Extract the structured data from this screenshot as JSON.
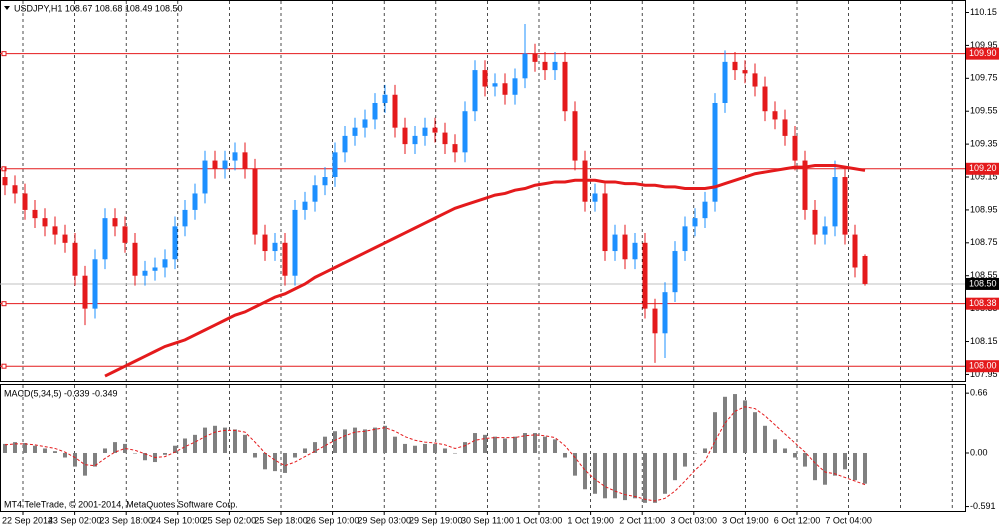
{
  "chart_data": {
    "type": "candlestick",
    "title": "USDJPY,H1  108.67 108.68 108.49 108.50",
    "up_color": "#1e90ff",
    "down_color": "#e41a1c",
    "grid": true,
    "ylim": [
      107.91,
      110.22
    ],
    "yticks": [
      110.15,
      109.95,
      109.75,
      109.55,
      109.35,
      109.15,
      108.95,
      108.75,
      108.55,
      108.35,
      108.15,
      107.95
    ],
    "xlabels": [
      "22 Sep 2014",
      "23 Sep 02:00",
      "23 Sep 18:00",
      "24 Sep 10:00",
      "25 Sep 02:00",
      "25 Sep 18:00",
      "26 Sep 10:00",
      "29 Sep 03:00",
      "29 Sep 19:00",
      "30 Sep 11:00",
      "1 Oct 03:00",
      "1 Oct 19:00",
      "2 Oct 11:00",
      "3 Oct 03:00",
      "3 Oct 19:00",
      "6 Oct 12:00",
      "7 Oct 04:00"
    ],
    "open": [
      109.15,
      109.1,
      109.05,
      108.95,
      108.9,
      108.85,
      108.8,
      108.75,
      108.55,
      108.35,
      108.65,
      108.9,
      108.85,
      108.75,
      108.55,
      108.58,
      108.6,
      108.65,
      108.85,
      108.95,
      109.05,
      109.25,
      109.2,
      109.25,
      109.3,
      109.2,
      108.8,
      108.7,
      108.75,
      108.55,
      108.95,
      109.0,
      109.1,
      109.15,
      109.3,
      109.4,
      109.45,
      109.5,
      109.6,
      109.65,
      109.45,
      109.35,
      109.4,
      109.45,
      109.42,
      109.35,
      109.3,
      109.55,
      109.8,
      109.7,
      109.72,
      109.65,
      109.75,
      109.9,
      109.85,
      109.8,
      109.85,
      109.55,
      109.25,
      109.0,
      109.05,
      108.7,
      108.8,
      108.65,
      108.75,
      108.35,
      108.2,
      108.45,
      108.7,
      108.85,
      108.9,
      109.0,
      109.6,
      109.85,
      109.8,
      109.78,
      109.7,
      109.55,
      109.5,
      109.4,
      109.25,
      108.95,
      108.8,
      108.85,
      109.15,
      108.8,
      108.67
    ],
    "high": [
      109.21,
      109.16,
      109.11,
      109.01,
      108.96,
      108.91,
      108.86,
      108.81,
      108.61,
      108.71,
      108.96,
      108.96,
      108.91,
      108.81,
      108.64,
      108.66,
      108.71,
      108.91,
      109.01,
      109.11,
      109.31,
      109.31,
      109.31,
      109.36,
      109.36,
      109.26,
      108.86,
      108.81,
      108.81,
      109.01,
      109.06,
      109.16,
      109.21,
      109.36,
      109.46,
      109.51,
      109.56,
      109.66,
      109.71,
      109.71,
      109.51,
      109.46,
      109.51,
      109.51,
      109.48,
      109.41,
      109.61,
      109.86,
      109.86,
      109.78,
      109.78,
      109.81,
      110.08,
      109.96,
      109.91,
      109.91,
      109.91,
      109.61,
      109.31,
      109.11,
      109.11,
      108.86,
      108.86,
      108.81,
      108.81,
      108.41,
      108.51,
      108.76,
      108.91,
      108.96,
      109.06,
      109.66,
      109.92,
      109.91,
      109.86,
      109.84,
      109.76,
      109.61,
      109.56,
      109.46,
      109.31,
      109.01,
      108.91,
      109.25,
      109.21,
      108.86,
      108.68
    ],
    "low": [
      109.04,
      108.99,
      108.89,
      108.84,
      108.79,
      108.74,
      108.69,
      108.49,
      108.25,
      108.29,
      108.59,
      108.79,
      108.69,
      108.49,
      108.49,
      108.52,
      108.54,
      108.59,
      108.79,
      108.89,
      108.99,
      109.14,
      109.14,
      109.19,
      109.14,
      108.74,
      108.64,
      108.64,
      108.49,
      108.49,
      108.89,
      108.94,
      109.04,
      109.09,
      109.24,
      109.34,
      109.39,
      109.44,
      109.54,
      109.39,
      109.29,
      109.29,
      109.34,
      109.36,
      109.29,
      109.24,
      109.24,
      109.49,
      109.64,
      109.64,
      109.59,
      109.59,
      109.69,
      109.79,
      109.74,
      109.74,
      109.49,
      109.19,
      108.94,
      108.94,
      108.64,
      108.64,
      108.59,
      108.59,
      108.29,
      108.02,
      108.05,
      108.39,
      108.64,
      108.79,
      108.84,
      108.94,
      109.54,
      109.74,
      109.72,
      109.64,
      109.49,
      109.44,
      109.34,
      109.19,
      108.89,
      108.74,
      108.74,
      108.79,
      108.74,
      108.54,
      108.49
    ],
    "close": [
      109.1,
      109.05,
      108.95,
      108.9,
      108.85,
      108.8,
      108.75,
      108.55,
      108.35,
      108.65,
      108.9,
      108.85,
      108.75,
      108.55,
      108.58,
      108.6,
      108.65,
      108.85,
      108.95,
      109.05,
      109.25,
      109.2,
      109.25,
      109.3,
      109.2,
      108.8,
      108.7,
      108.75,
      108.55,
      108.95,
      109.0,
      109.1,
      109.15,
      109.3,
      109.4,
      109.45,
      109.5,
      109.6,
      109.65,
      109.45,
      109.35,
      109.4,
      109.45,
      109.42,
      109.35,
      109.3,
      109.55,
      109.8,
      109.7,
      109.72,
      109.65,
      109.75,
      109.9,
      109.85,
      109.8,
      109.85,
      109.55,
      109.25,
      109.0,
      109.05,
      108.7,
      108.8,
      108.65,
      108.75,
      108.35,
      108.2,
      108.45,
      108.7,
      108.85,
      108.9,
      109.0,
      109.6,
      109.85,
      109.8,
      109.78,
      109.7,
      109.55,
      109.5,
      109.4,
      109.25,
      108.95,
      108.8,
      108.85,
      109.15,
      108.8,
      108.6,
      108.5
    ],
    "moving_average": {
      "color": "#e41a1c",
      "values": [
        null,
        null,
        null,
        null,
        null,
        null,
        null,
        null,
        null,
        null,
        107.94,
        107.97,
        108.0,
        108.03,
        108.06,
        108.09,
        108.12,
        108.14,
        108.16,
        108.19,
        108.22,
        108.25,
        108.28,
        108.31,
        108.33,
        108.36,
        108.39,
        108.42,
        108.44,
        108.47,
        108.5,
        108.54,
        108.57,
        108.6,
        108.63,
        108.66,
        108.69,
        108.72,
        108.75,
        108.78,
        108.81,
        108.84,
        108.87,
        108.9,
        108.93,
        108.96,
        108.98,
        109.0,
        109.02,
        109.04,
        109.05,
        109.07,
        109.08,
        109.1,
        109.11,
        109.12,
        109.12,
        109.13,
        109.13,
        109.13,
        109.12,
        109.12,
        109.11,
        109.11,
        109.1,
        109.1,
        109.09,
        109.09,
        109.08,
        109.08,
        109.08,
        109.09,
        109.11,
        109.13,
        109.15,
        109.17,
        109.18,
        109.19,
        109.2,
        109.21,
        109.21,
        109.22,
        109.22,
        109.22,
        109.21,
        109.2,
        109.19
      ]
    },
    "level_color": "#e41a1c",
    "levels": [
      {
        "value": 109.9,
        "label": "109.90"
      },
      {
        "value": 109.2,
        "label": "109.20"
      },
      108.38,
      {
        "value": 108,
        "label": "108.00"
      }
    ],
    "current_price": {
      "value": 108.5,
      "label": "108.50"
    },
    "macd": {
      "title": "MACD(5,34,5) -0.339 -0.349",
      "hist_color": "#808080",
      "signal_color": "#e41a1c",
      "ylim": [
        -0.64,
        0.75
      ],
      "yticks": [
        0.66,
        {
          "value": 0,
          "label": "0.00"
        },
        -0.591
      ],
      "histogram": [
        0.1,
        0.12,
        0.11,
        0.08,
        0.05,
        0.02,
        -0.05,
        -0.15,
        -0.25,
        -0.15,
        0.05,
        0.12,
        0.1,
        0,
        -0.08,
        -0.1,
        -0.02,
        0.08,
        0.16,
        0.2,
        0.28,
        0.3,
        0.28,
        0.26,
        0.2,
        -0.05,
        -0.18,
        -0.2,
        -0.22,
        -0.05,
        0.05,
        0.12,
        0.18,
        0.24,
        0.26,
        0.28,
        0.26,
        0.28,
        0.3,
        0.18,
        0.1,
        0.08,
        0.1,
        0.1,
        0.05,
        0,
        0.12,
        0.22,
        0.2,
        0.18,
        0.16,
        0.18,
        0.22,
        0.22,
        0.18,
        0.15,
        -0.05,
        -0.25,
        -0.4,
        -0.45,
        -0.5,
        -0.5,
        -0.52,
        -0.5,
        -0.55,
        -0.55,
        -0.45,
        -0.3,
        -0.15,
        0,
        0.05,
        0.45,
        0.62,
        0.65,
        0.58,
        0.45,
        0.3,
        0.15,
        0.05,
        -0.05,
        -0.15,
        -0.3,
        -0.35,
        -0.25,
        -0.18,
        -0.3,
        -0.339
      ],
      "signal": [
        0.09,
        0.1,
        0.1,
        0.09,
        0.07,
        0.05,
        0.01,
        -0.05,
        -0.13,
        -0.14,
        -0.06,
        0.01,
        0.05,
        0.03,
        -0.01,
        -0.05,
        -0.04,
        0.01,
        0.07,
        0.12,
        0.18,
        0.23,
        0.25,
        0.25,
        0.23,
        0.12,
        0,
        -0.08,
        -0.14,
        -0.1,
        -0.04,
        0.02,
        0.08,
        0.14,
        0.19,
        0.23,
        0.24,
        0.26,
        0.28,
        0.24,
        0.18,
        0.14,
        0.12,
        0.11,
        0.09,
        0.05,
        0.08,
        0.14,
        0.16,
        0.17,
        0.17,
        0.17,
        0.19,
        0.2,
        0.19,
        0.17,
        0.08,
        -0.05,
        -0.19,
        -0.29,
        -0.37,
        -0.42,
        -0.46,
        -0.48,
        -0.51,
        -0.53,
        -0.5,
        -0.42,
        -0.31,
        -0.19,
        -0.09,
        0.13,
        0.33,
        0.46,
        0.51,
        0.49,
        0.41,
        0.31,
        0.21,
        0.11,
        0.01,
        -0.11,
        -0.21,
        -0.23,
        -0.27,
        -0.31,
        -0.349
      ]
    },
    "footer": "MT4 TeleTrade, © 2001-2014, MetaQuotes Software Corp."
  }
}
